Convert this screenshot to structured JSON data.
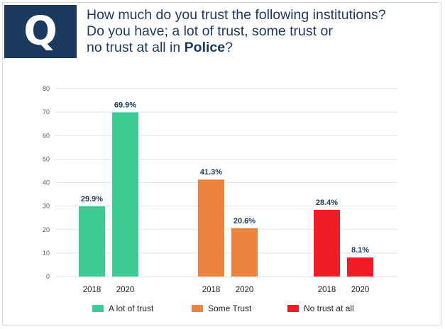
{
  "header": {
    "q_letter": "Q",
    "question_line1": "How much do you trust the following institutions?",
    "question_line2": "Do you have; a lot of trust, some trust or",
    "question_line3_prefix": "no trust at all in ",
    "question_line3_bold": "Police",
    "question_line3_suffix": "?"
  },
  "chart_data": {
    "type": "bar",
    "ylim": [
      0,
      80
    ],
    "yticks": [
      0,
      10,
      20,
      30,
      40,
      50,
      60,
      70,
      80
    ],
    "grid": true,
    "legend_position": "bottom",
    "groups": [
      {
        "name": "A lot of trust",
        "color": "#3ecb94",
        "bars": [
          {
            "year": "2018",
            "value": 29.9,
            "label": "29.9%"
          },
          {
            "year": "2020",
            "value": 69.9,
            "label": "69.9%"
          }
        ]
      },
      {
        "name": "Some Trust",
        "color": "#ec8440",
        "bars": [
          {
            "year": "2018",
            "value": 41.3,
            "label": "41.3%"
          },
          {
            "year": "2020",
            "value": 20.6,
            "label": "20.6%"
          }
        ]
      },
      {
        "name": "No trust at all",
        "color": "#f21d24",
        "bars": [
          {
            "year": "2018",
            "value": 28.4,
            "label": "28.4%"
          },
          {
            "year": "2020",
            "value": 8.1,
            "label": "8.1%"
          }
        ]
      }
    ]
  }
}
